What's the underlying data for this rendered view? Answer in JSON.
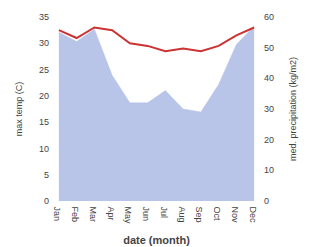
{
  "chart_data": {
    "type": "line",
    "categories": [
      "Jan",
      "Feb",
      "Mar",
      "Apr",
      "May",
      "Jun",
      "Jul",
      "Aug",
      "Sep",
      "Oct",
      "Nov",
      "Dec"
    ],
    "series": [
      {
        "type": "area",
        "color": "#b8c4e8",
        "axis": "y2",
        "values": [
          55,
          52,
          56,
          41,
          32,
          32,
          36,
          30,
          29,
          38,
          51,
          57
        ]
      },
      {
        "type": "line",
        "color": "#cc3333",
        "values": [
          32.5,
          31.0,
          33.0,
          32.5,
          30.0,
          29.5,
          28.5,
          29.0,
          28.5,
          29.5,
          31.5,
          33.0
        ]
      }
    ],
    "xlabel": "date (month)",
    "ylabel": "max temp (C)",
    "y2label": "med. precipitation (kg/m2)",
    "ylim": [
      0,
      35
    ],
    "yticks": [
      0,
      5,
      10,
      15,
      20,
      25,
      30,
      35
    ],
    "y2lim": [
      0,
      60
    ],
    "y2ticks": [
      0,
      10,
      20,
      30,
      40,
      50,
      60
    ],
    "grid": false
  }
}
